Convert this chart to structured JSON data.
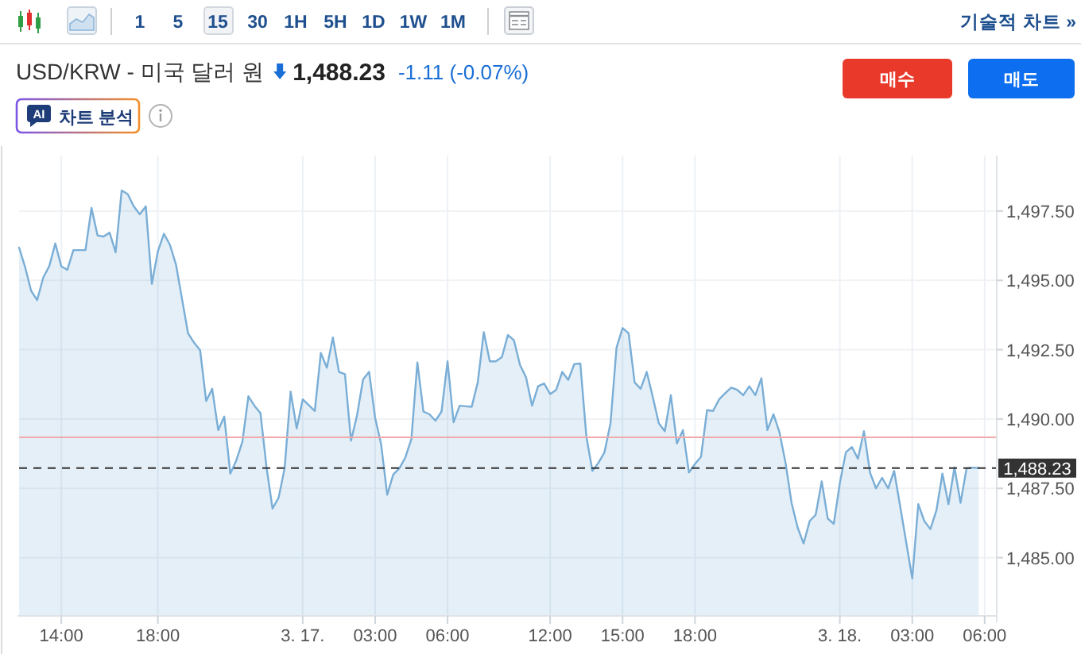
{
  "chart_data": {
    "type": "area",
    "title": "USD/KRW - 미국 달러 원",
    "subtitle": "1,488.23",
    "annotations": [
      "1",
      "5",
      "15",
      "30",
      "1H",
      "5H",
      "1D",
      "1W",
      "1M",
      "기술적 차트 »",
      "-1.11 (-0.07%)",
      "매수",
      "매도",
      "AI",
      "차트 분석"
    ],
    "categories": [
      null,
      null,
      null,
      null,
      null,
      null,
      null,
      "14:00",
      null,
      null,
      null,
      null,
      null,
      null,
      null,
      null,
      null,
      null,
      null,
      null,
      null,
      null,
      null,
      "18:00",
      null,
      null,
      null,
      null,
      null,
      null,
      null,
      null,
      null,
      null,
      null,
      null,
      null,
      null,
      null,
      null,
      null,
      null,
      null,
      null,
      null,
      null,
      null,
      "3. 17.",
      null,
      null,
      null,
      null,
      null,
      null,
      null,
      null,
      null,
      null,
      null,
      "03:00",
      null,
      null,
      null,
      null,
      null,
      null,
      null,
      null,
      null,
      null,
      null,
      "06:00",
      null,
      null,
      null,
      null,
      null,
      null,
      null,
      null,
      null,
      null,
      null,
      null,
      null,
      null,
      null,
      null,
      "12:00",
      null,
      null,
      null,
      null,
      null,
      null,
      null,
      null,
      null,
      null,
      null,
      "15:00",
      null,
      null,
      null,
      null,
      null,
      null,
      null,
      null,
      null,
      null,
      null,
      "18:00",
      null,
      null,
      null,
      null,
      null,
      null,
      null,
      null,
      null,
      null,
      null,
      null,
      null,
      null,
      null,
      null,
      null,
      null,
      null,
      null,
      null,
      null,
      null,
      "3. 18.",
      null,
      null,
      null,
      null,
      null,
      null,
      null,
      null,
      null,
      null,
      null,
      "03:00",
      null,
      null,
      null,
      null,
      null,
      null,
      null,
      null,
      null,
      null,
      null,
      "06:00"
    ],
    "values": [
      1496.18,
      1495.48,
      1494.62,
      1494.29,
      1495.1,
      1495.51,
      1496.33,
      1495.51,
      1495.38,
      1496.09,
      1496.09,
      1496.09,
      1497.61,
      1496.62,
      1496.58,
      1496.72,
      1496.01,
      1498.24,
      1498.11,
      1497.67,
      1497.38,
      1497.67,
      1494.87,
      1496.05,
      1496.68,
      1496.28,
      1495.57,
      1494.33,
      1493.09,
      1492.75,
      1492.48,
      1490.65,
      1491.09,
      1489.6,
      1490.09,
      1488.03,
      1488.51,
      1489.18,
      1490.82,
      1490.48,
      1490.21,
      1488.26,
      1486.77,
      1487.16,
      1488.22,
      1490.99,
      1489.66,
      1490.71,
      1490.5,
      1490.29,
      1492.38,
      1491.85,
      1492.94,
      1491.7,
      1491.62,
      1489.22,
      1490.13,
      1491.43,
      1491.7,
      1490.04,
      1489.08,
      1487.27,
      1488.0,
      1488.22,
      1488.61,
      1489.27,
      1492.04,
      1490.27,
      1490.17,
      1489.94,
      1490.27,
      1492.08,
      1489.88,
      1490.48,
      1490.46,
      1490.44,
      1491.32,
      1493.13,
      1492.08,
      1492.08,
      1492.23,
      1493.03,
      1492.84,
      1491.95,
      1491.51,
      1490.48,
      1491.18,
      1491.28,
      1490.9,
      1491.05,
      1491.7,
      1491.41,
      1491.98,
      1492.0,
      1489.37,
      1488.13,
      1488.42,
      1488.8,
      1489.85,
      1492.58,
      1493.28,
      1493.09,
      1491.32,
      1491.09,
      1491.7,
      1490.8,
      1489.85,
      1489.56,
      1490.86,
      1489.12,
      1489.6,
      1488.07,
      1488.38,
      1488.64,
      1490.32,
      1490.29,
      1490.71,
      1490.93,
      1491.13,
      1491.05,
      1490.86,
      1491.18,
      1490.86,
      1491.47,
      1489.6,
      1490.17,
      1489.52,
      1488.42,
      1486.98,
      1486.09,
      1485.51,
      1486.32,
      1486.55,
      1487.75,
      1486.41,
      1486.22,
      1487.69,
      1488.8,
      1488.99,
      1488.57,
      1489.56,
      1488.07,
      1487.5,
      1487.88,
      1487.5,
      1488.13,
      1486.85,
      1485.55,
      1484.25,
      1486.93,
      1486.32,
      1486.03,
      1486.7,
      1488.03,
      1486.93,
      1488.26,
      1486.98,
      1488.22,
      1488.25,
      1488.23,
      null
    ],
    "color": "#7aaed6",
    "ylim": [
      1482.9,
      1499.5
    ],
    "yticks": [
      {
        "value": 1485,
        "label": "1,485.00"
      },
      {
        "value": 1487.5,
        "label": "1,487.50"
      },
      {
        "value": 1490,
        "label": "1,490.00"
      },
      {
        "value": 1492.5,
        "label": "1,492.50"
      },
      {
        "value": 1495,
        "label": "1,495.00"
      },
      {
        "value": 1497.5,
        "label": "1,497.50"
      }
    ],
    "grid": true,
    "ref_lines": [
      {
        "axis": "y",
        "value": 1489.34,
        "color": "#f2a9a9",
        "line_style": "solid"
      },
      {
        "axis": "y",
        "value": 1488.23,
        "label": "1,488.23",
        "color": "#333333",
        "line_style": "dashed"
      }
    ]
  }
}
